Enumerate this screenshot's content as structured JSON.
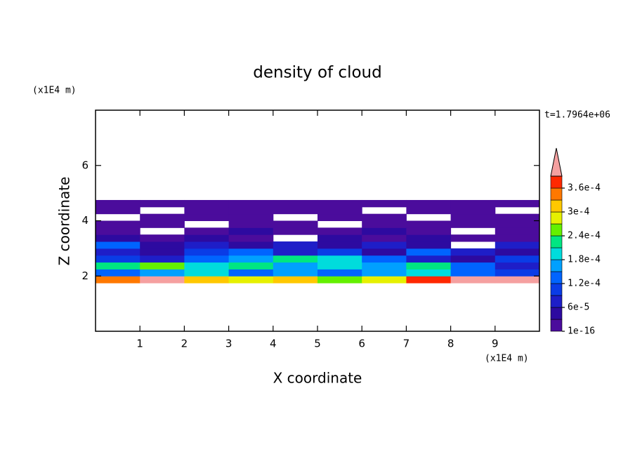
{
  "chart_data": {
    "type": "contour",
    "title": "density of cloud",
    "x_label": "X coordinate",
    "y_label": "Z coordinate",
    "x_unit": "(x1E4 m)",
    "y_unit": "(x1E4 m)",
    "time_label": "t=1.7964e+06",
    "xlim": [
      0,
      10
    ],
    "ylim": [
      0,
      8
    ],
    "xticks": [
      1,
      2,
      3,
      4,
      5,
      6,
      7,
      8,
      9
    ],
    "yticks": [
      2,
      4,
      6
    ],
    "field": {
      "x": [
        0,
        1,
        2,
        3,
        4,
        5,
        6,
        7,
        8,
        9,
        10
      ],
      "z": [
        1.75,
        2,
        2.25,
        2.5,
        2.75,
        3,
        3.25,
        3.5,
        3.75,
        4,
        4.25,
        4.5,
        4.75
      ],
      "values": [
        [
          0.00033,
          0.0004,
          0.0003,
          0.00027,
          0.0003,
          0.00024,
          0.00027,
          0.00036,
          0.00042,
          0.00045
        ],
        [
          0.00012,
          0.00015,
          0.00018,
          0.00012,
          0.00015,
          0.00012,
          0.00015,
          0.00018,
          0.00012,
          9e-05
        ],
        [
          0.00021,
          0.00024,
          0.00018,
          0.00021,
          0.00015,
          0.00018,
          0.00015,
          0.00021,
          0.00012,
          6e-05
        ],
        [
          9e-05,
          6e-05,
          0.00012,
          0.00015,
          0.00021,
          0.00018,
          0.00012,
          6e-05,
          3e-05,
          9e-05
        ],
        [
          6e-05,
          3e-05,
          9e-05,
          0.00012,
          6e-05,
          9e-05,
          3e-05,
          0.00012,
          6e-05,
          3e-05
        ],
        [
          0.00012,
          3e-05,
          6e-05,
          3e-05,
          6e-05,
          3e-05,
          6e-05,
          3e-05,
          null,
          6e-05
        ],
        [
          3e-05,
          1e-05,
          3e-05,
          1e-05,
          null,
          3e-05,
          1e-05,
          3e-05,
          1e-05,
          1e-05
        ],
        [
          1e-05,
          null,
          1e-05,
          3e-05,
          1e-05,
          1e-05,
          3e-05,
          1e-05,
          null,
          1e-05
        ],
        [
          1e-05,
          1e-05,
          null,
          1e-05,
          1e-05,
          null,
          1e-05,
          1e-05,
          1e-05,
          1e-05
        ],
        [
          null,
          1e-05,
          1e-05,
          1e-05,
          null,
          1e-05,
          1e-05,
          null,
          1e-05,
          1e-05
        ],
        [
          1e-05,
          null,
          1e-05,
          1e-05,
          1e-05,
          1e-05,
          null,
          1e-05,
          1e-05,
          null
        ],
        [
          1e-05,
          1e-05,
          1e-05,
          1e-05,
          1e-05,
          1e-05,
          1e-05,
          1e-05,
          1e-05,
          1e-05
        ]
      ]
    },
    "colorbar": {
      "levels": [
        1e-16,
        3e-05,
        6e-05,
        9e-05,
        0.00012,
        0.00015,
        0.00018,
        0.00021,
        0.00024,
        0.00027,
        0.0003,
        0.00033,
        0.00036
      ],
      "colors": [
        "#4b0c9c",
        "#2d0aa0",
        "#1e1ec8",
        "#0a3ce6",
        "#0064ff",
        "#00a0ff",
        "#00dcdc",
        "#00e682",
        "#64f000",
        "#e6f000",
        "#ffc800",
        "#ff7800",
        "#ff2800"
      ],
      "extend_color": "#f5a0a0",
      "ticks": [
        {
          "value": 1e-16,
          "label": "1e-16"
        },
        {
          "value": 6e-05,
          "label": "6e-5"
        },
        {
          "value": 0.00012,
          "label": "1.2e-4"
        },
        {
          "value": 0.00018,
          "label": "1.8e-4"
        },
        {
          "value": 0.00024,
          "label": "2.4e-4"
        },
        {
          "value": 0.0003,
          "label": "3e-4"
        },
        {
          "value": 0.00036,
          "label": "3.6e-4"
        }
      ]
    }
  }
}
